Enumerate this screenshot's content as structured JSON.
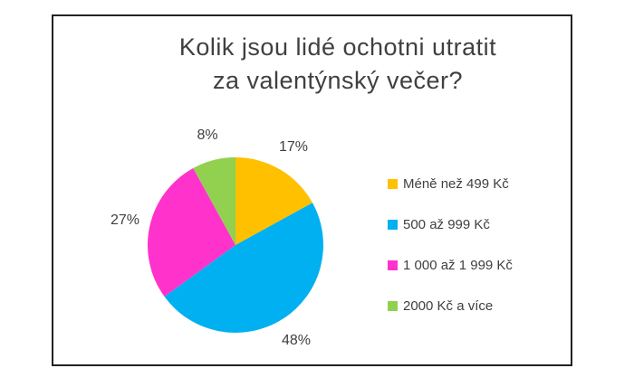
{
  "chart_data": {
    "type": "pie",
    "title": "Kolik jsou lidé ochotni utratit za valentýnský večer?",
    "title_lines": [
      "Kolik jsou lidé ochotni utratit",
      "za valentýnský večer?"
    ],
    "slices": [
      {
        "label": "Méně než 499 Kč",
        "value": 17,
        "percent_label": "17%",
        "color": "#FFC000"
      },
      {
        "label": "500 až 999 Kč",
        "value": 48,
        "percent_label": "48%",
        "color": "#00B0F0"
      },
      {
        "label": "1 000 až 1 999 Kč",
        "value": 27,
        "percent_label": "27%",
        "color": "#FF33CC"
      },
      {
        "label": "2000 Kč a více",
        "value": 8,
        "percent_label": "8%",
        "color": "#92D050"
      }
    ],
    "start_angle_deg": 0,
    "direction": "clockwise",
    "legend_position": "right",
    "data_labels": "percent-outside",
    "text_color": "#404040",
    "frame_border_color": "#222222",
    "background_color": "#ffffff"
  }
}
